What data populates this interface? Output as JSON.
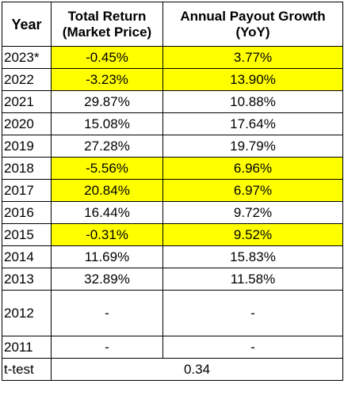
{
  "table": {
    "headers": {
      "year": "Year",
      "total_return": [
        "Total Return",
        "(Market Price)"
      ],
      "payout_growth": [
        "Annual Payout Growth",
        "(YoY)"
      ]
    },
    "highlight_color": "#ffff00",
    "rows": [
      {
        "year": "2023*",
        "total_return": "-0.45%",
        "payout_growth": "3.77%",
        "highlight": true
      },
      {
        "year": "2022",
        "total_return": "-3.23%",
        "payout_growth": "13.90%",
        "highlight": true
      },
      {
        "year": "2021",
        "total_return": "29.87%",
        "payout_growth": "10.88%",
        "highlight": false
      },
      {
        "year": "2020",
        "total_return": "15.08%",
        "payout_growth": "17.64%",
        "highlight": false
      },
      {
        "year": "2019",
        "total_return": "27.28%",
        "payout_growth": "19.79%",
        "highlight": false
      },
      {
        "year": "2018",
        "total_return": "-5.56%",
        "payout_growth": "6.96%",
        "highlight": true
      },
      {
        "year": "2017",
        "total_return": "20.84%",
        "payout_growth": "6.97%",
        "highlight": true
      },
      {
        "year": "2016",
        "total_return": "16.44%",
        "payout_growth": "9.72%",
        "highlight": false
      },
      {
        "year": "2015",
        "total_return": "-0.31%",
        "payout_growth": "9.52%",
        "highlight": true
      },
      {
        "year": "2014",
        "total_return": "11.69%",
        "payout_growth": "15.83%",
        "highlight": false
      },
      {
        "year": "2013",
        "total_return": "32.89%",
        "payout_growth": "11.58%",
        "highlight": false
      },
      {
        "year": "2012",
        "total_return": "-",
        "payout_growth": "-",
        "highlight": false
      },
      {
        "year": "2011",
        "total_return": "-",
        "payout_growth": "-",
        "highlight": false
      }
    ],
    "footer": {
      "label": "t-test",
      "value": "0.34"
    }
  }
}
